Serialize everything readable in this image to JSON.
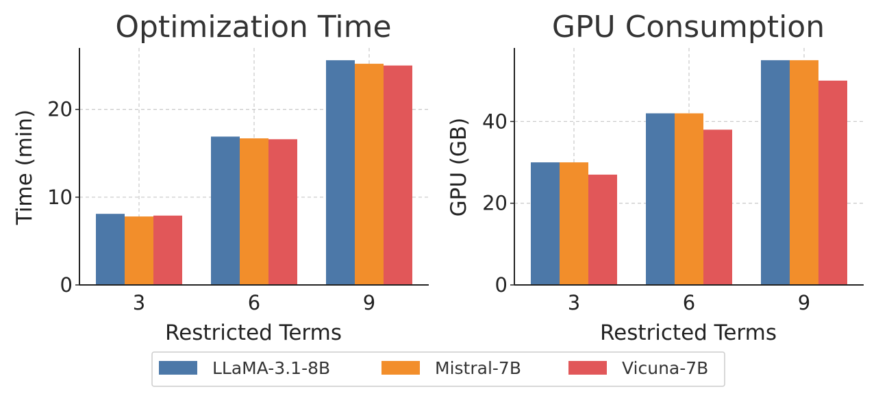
{
  "chart_data": [
    {
      "type": "bar",
      "title": "Optimization Time",
      "xlabel": "Restricted Terms",
      "ylabel": "Time (min)",
      "categories": [
        "3",
        "6",
        "9"
      ],
      "series": [
        {
          "name": "LLaMA-3.1-8B",
          "values": [
            8.1,
            16.9,
            25.6
          ]
        },
        {
          "name": "Mistral-7B",
          "values": [
            7.8,
            16.7,
            25.2
          ]
        },
        {
          "name": "Vicuna-7B",
          "values": [
            7.9,
            16.6,
            25.0
          ]
        }
      ],
      "ylim": [
        0,
        27
      ],
      "yticks": [
        0,
        10,
        20
      ],
      "grid": true
    },
    {
      "type": "bar",
      "title": "GPU Consumption",
      "xlabel": "Restricted Terms",
      "ylabel": "GPU (GB)",
      "categories": [
        "3",
        "6",
        "9"
      ],
      "series": [
        {
          "name": "LLaMA-3.1-8B",
          "values": [
            30,
            42,
            55
          ]
        },
        {
          "name": "Mistral-7B",
          "values": [
            30,
            42,
            55
          ]
        },
        {
          "name": "Vicuna-7B",
          "values": [
            27,
            38,
            50
          ]
        }
      ],
      "ylim": [
        0,
        58
      ],
      "yticks": [
        0,
        20,
        40
      ],
      "grid": true
    }
  ],
  "legend": {
    "placement": "bottom-center",
    "entries": [
      {
        "name": "LLaMA-3.1-8B",
        "color": "#4c78a8"
      },
      {
        "name": "Mistral-7B",
        "color": "#f28e2b"
      },
      {
        "name": "Vicuna-7B",
        "color": "#e15759"
      }
    ]
  },
  "colors": {
    "LLaMA-3.1-8B": "#4c78a8",
    "Mistral-7B": "#f28e2b",
    "Vicuna-7B": "#e15759",
    "axis": "#222222",
    "grid": "#cccccc"
  }
}
